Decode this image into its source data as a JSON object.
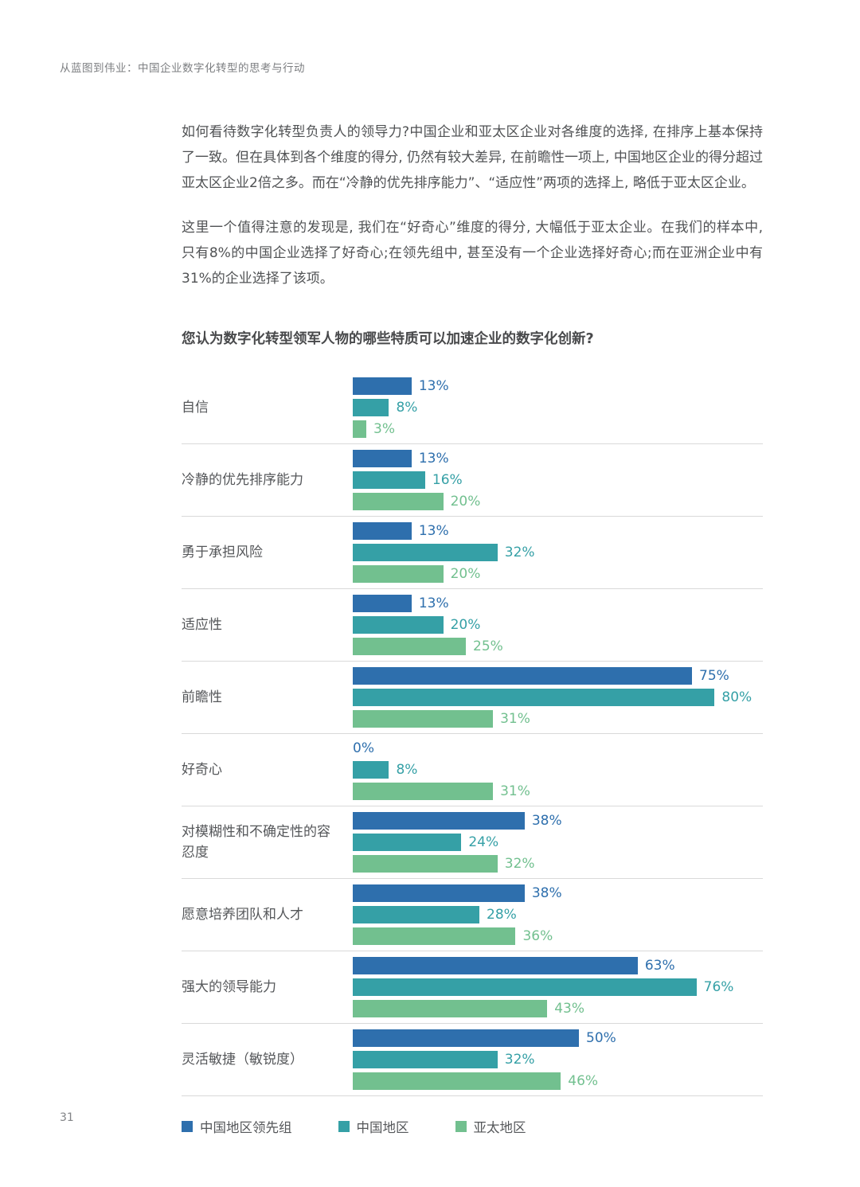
{
  "page": {
    "header": "从蓝图到伟业：中国企业数字化转型的思考与行动",
    "page_number": "31"
  },
  "paragraphs": [
    "如何看待数字化转型负责人的领导力?中国企业和亚太区企业对各维度的选择, 在排序上基本保持了一致。但在具体到各个维度的得分, 仍然有较大差异, 在前瞻性一项上, 中国地区企业的得分超过亚太区企业2倍之多。而在“冷静的优先排序能力”、“适应性”两项的选择上, 略低于亚太区企业。",
    "这里一个值得注意的发现是, 我们在“好奇心”维度的得分, 大幅低于亚太企业。在我们的样本中, 只有8%的中国企业选择了好奇心;在领先组中, 甚至没有一个企业选择好奇心;而在亚洲企业中有31%的企业选择了该项。"
  ],
  "chart_data": {
    "type": "bar",
    "orientation": "horizontal",
    "title": "您认为数字化转型领军人物的哪些特质可以加速企业的数字化创新?",
    "categories": [
      "自信",
      "冷静的优先排序能力",
      "勇于承担风险",
      "适应性",
      "前瞻性",
      "好奇心",
      "对模糊性和不确定性的容忍度",
      "愿意培养团队和人才",
      "强大的领导能力",
      "灵活敏捷（敏锐度）"
    ],
    "series": [
      {
        "name": "中国地区领先组",
        "color": "#2e6fad",
        "values": [
          13,
          13,
          13,
          13,
          75,
          0,
          38,
          38,
          63,
          50
        ]
      },
      {
        "name": "中国地区",
        "color": "#35a0a6",
        "values": [
          8,
          16,
          32,
          20,
          80,
          8,
          24,
          28,
          76,
          32
        ]
      },
      {
        "name": "亚太地区",
        "color": "#72c08f",
        "values": [
          3,
          20,
          20,
          25,
          31,
          31,
          32,
          36,
          43,
          46
        ]
      }
    ],
    "value_suffix": "%",
    "xlim": [
      0,
      100
    ],
    "grid": false,
    "legend_position": "bottom"
  }
}
